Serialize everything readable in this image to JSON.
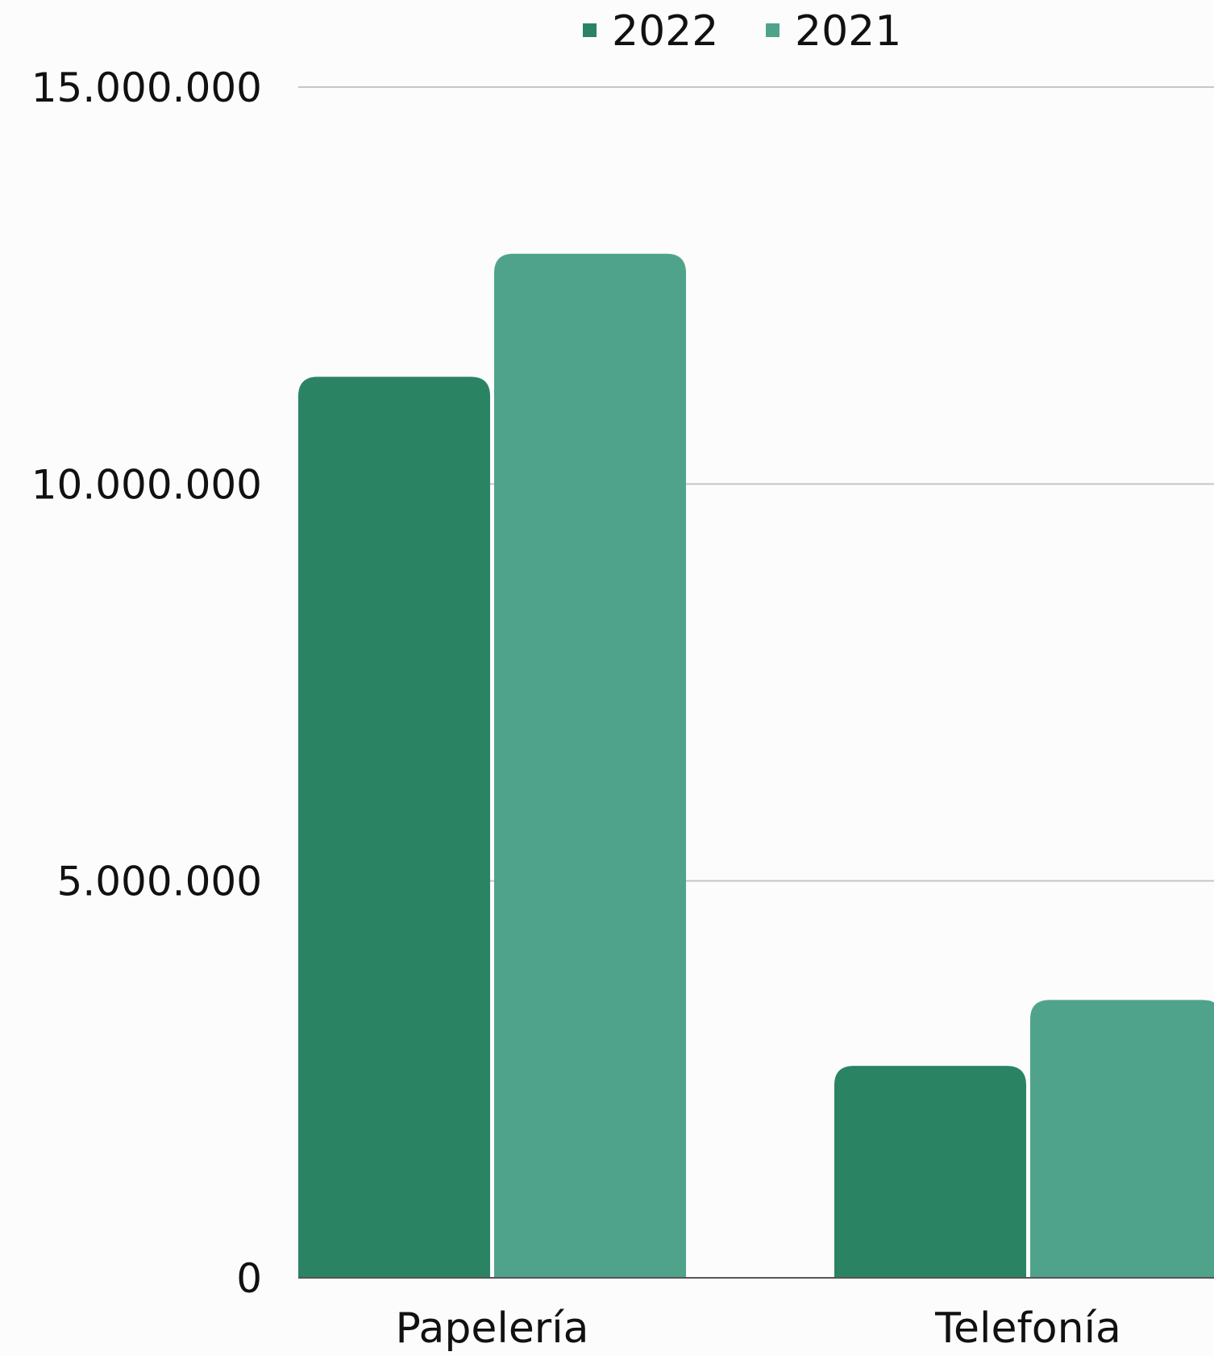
{
  "chart_data": {
    "type": "bar",
    "title": "",
    "xlabel": "",
    "ylabel": "",
    "categories": [
      "Papelería",
      "Telefonía"
    ],
    "series": [
      {
        "name": "2022",
        "values": [
          11350000,
          2670000
        ],
        "color": "#2a8464"
      },
      {
        "name": "2021",
        "values": [
          12900000,
          3500000
        ],
        "color": "#50a38b"
      }
    ],
    "ylim": [
      0,
      15000000
    ],
    "yticks": [
      0,
      5000000,
      10000000,
      15000000
    ],
    "ytick_labels": [
      "0",
      "5.000.000",
      "10.000.000",
      "15.000.000"
    ],
    "grid": true,
    "legend_position": "top-center"
  }
}
